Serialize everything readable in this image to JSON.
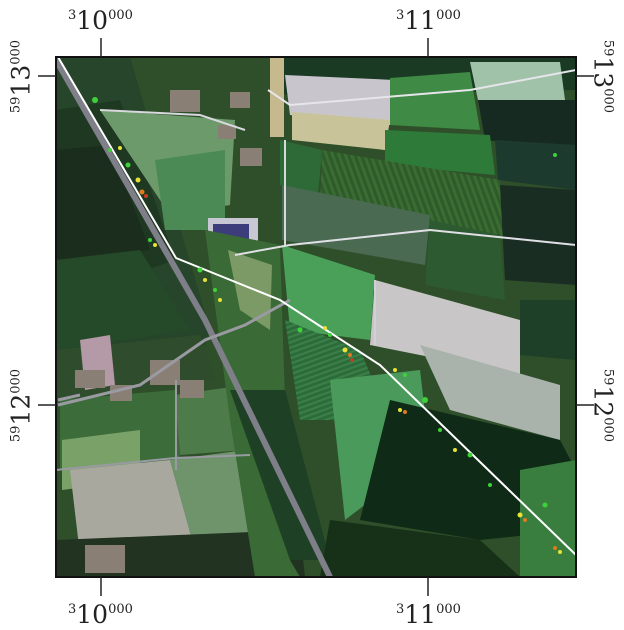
{
  "map": {
    "frame_color": "#111111",
    "road_color": "#ffffff",
    "detection_colors": [
      "#e8e233",
      "#3fd13a",
      "#e07a1d",
      "#c93a1e"
    ]
  },
  "coords": {
    "top": [
      {
        "prefix": "3",
        "main": "10",
        "sup": "000"
      },
      {
        "prefix": "3",
        "main": "11",
        "sup": "000"
      }
    ],
    "bottom": [
      {
        "prefix": "3",
        "main": "10",
        "sup": "000"
      },
      {
        "prefix": "3",
        "main": "11",
        "sup": "000"
      }
    ],
    "left": [
      {
        "prefix": "59",
        "main": "13",
        "sup": "000"
      },
      {
        "prefix": "59",
        "main": "12",
        "sup": "000"
      }
    ],
    "right": [
      {
        "prefix": "59",
        "main": "13",
        "sup": "000"
      },
      {
        "prefix": "59",
        "main": "12",
        "sup": "000"
      }
    ]
  }
}
